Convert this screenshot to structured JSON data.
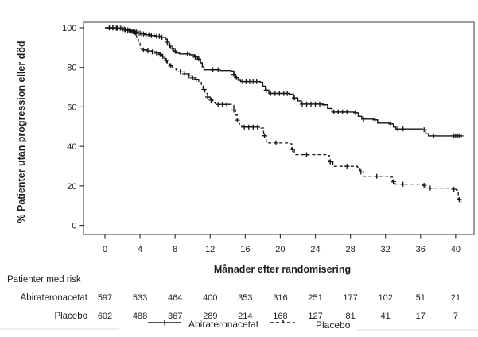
{
  "figure": {
    "background": "#ffffff",
    "frame_color": "#8a8a8a",
    "curve_color": "#151515",
    "tick_color": "#333333"
  },
  "chart_data": {
    "type": "line",
    "subtype": "kaplan-meier-step",
    "title": "",
    "xlabel": "Månader efter randomisering",
    "ylabel": "% Patienter utan progression eller död",
    "x_ticks": [
      0,
      4,
      8,
      12,
      16,
      20,
      24,
      28,
      32,
      36,
      40
    ],
    "y_ticks": [
      0,
      20,
      40,
      60,
      80,
      100
    ],
    "xlim": [
      -2.45,
      42.1
    ],
    "ylim": [
      -4.6,
      102.8
    ],
    "grid": false,
    "legend_position": "bottom",
    "series": [
      {
        "name": "Abirateronacetat",
        "style": "solid",
        "marker": "+",
        "points": [
          [
            0,
            100
          ],
          [
            1.0,
            99.8
          ],
          [
            1.9,
            99.4
          ],
          [
            2.2,
            99
          ],
          [
            2.6,
            98.6
          ],
          [
            3.0,
            98.2
          ],
          [
            3.4,
            97.8
          ],
          [
            3.8,
            97.3
          ],
          [
            4.2,
            96.9
          ],
          [
            4.7,
            96.5
          ],
          [
            5.2,
            96.1
          ],
          [
            5.8,
            95.7
          ],
          [
            6.4,
            95.2
          ],
          [
            6.9,
            94.3
          ],
          [
            7.1,
            92.8
          ],
          [
            7.3,
            91.2
          ],
          [
            7.5,
            89.6
          ],
          [
            7.8,
            88.2
          ],
          [
            8.1,
            87.2
          ],
          [
            8.5,
            86.8
          ],
          [
            9.7,
            86.3
          ],
          [
            10.2,
            85.2
          ],
          [
            10.6,
            84.2
          ],
          [
            10.9,
            82.3
          ],
          [
            11.1,
            80.3
          ],
          [
            11.3,
            78.8
          ],
          [
            13.1,
            78.4
          ],
          [
            14.4,
            78.1
          ],
          [
            14.7,
            76.4
          ],
          [
            14.9,
            74.8
          ],
          [
            15.2,
            73.4
          ],
          [
            15.5,
            72.8
          ],
          [
            17.7,
            72.4
          ],
          [
            18.0,
            70.4
          ],
          [
            18.3,
            68.4
          ],
          [
            18.7,
            66.8
          ],
          [
            21.0,
            66.4
          ],
          [
            21.5,
            64.5
          ],
          [
            22.0,
            63
          ],
          [
            22.4,
            61.4
          ],
          [
            24.9,
            61.1
          ],
          [
            25.4,
            59.2
          ],
          [
            25.9,
            57.4
          ],
          [
            28.5,
            57.0
          ],
          [
            28.9,
            55.2
          ],
          [
            29.3,
            53.8
          ],
          [
            30.7,
            53.4
          ],
          [
            31.1,
            51.8
          ],
          [
            32.5,
            51.4
          ],
          [
            32.9,
            49.8
          ],
          [
            33.2,
            48.8
          ],
          [
            36.2,
            48.4
          ],
          [
            36.6,
            46.4
          ],
          [
            36.9,
            45.3
          ],
          [
            40.7,
            44.9
          ]
        ],
        "censor_months": [
          0.5,
          0.9,
          1.3,
          1.6,
          2.0,
          2.3,
          2.6,
          2.8,
          3.0,
          3.2,
          3.4,
          3.6,
          3.8,
          4.0,
          4.2,
          4.4,
          4.7,
          5.0,
          5.3,
          5.6,
          5.9,
          6.2,
          6.5,
          7.1,
          7.4,
          7.7,
          8.0,
          9.4,
          10.3,
          10.7,
          12.3,
          12.9,
          14.7,
          15.0,
          15.7,
          16.1,
          16.5,
          16.9,
          17.3,
          18.4,
          18.9,
          19.4,
          19.9,
          20.4,
          20.8,
          21.6,
          22.5,
          23.0,
          23.5,
          24.0,
          24.5,
          25.0,
          26.1,
          26.6,
          27.1,
          27.6,
          28.6,
          29.5,
          30.8,
          32.6,
          33.4,
          34.0,
          36.4,
          37.5,
          39.8,
          40.0,
          40.2,
          40.4,
          40.6
        ]
      },
      {
        "name": "Placebo",
        "style": "dashed",
        "marker": "+",
        "points": [
          [
            0,
            100
          ],
          [
            1.0,
            99.8
          ],
          [
            2.0,
            99.3
          ],
          [
            2.3,
            98.9
          ],
          [
            2.7,
            98.5
          ],
          [
            3.1,
            98
          ],
          [
            3.4,
            97.4
          ],
          [
            3.6,
            95.2
          ],
          [
            3.8,
            92.3
          ],
          [
            4.0,
            89.6
          ],
          [
            4.3,
            88.8
          ],
          [
            4.8,
            88.3
          ],
          [
            5.3,
            87.8
          ],
          [
            5.8,
            87.2
          ],
          [
            6.2,
            86.5
          ],
          [
            6.5,
            85.6
          ],
          [
            6.7,
            84.6
          ],
          [
            6.9,
            83.5
          ],
          [
            7.1,
            82.2
          ],
          [
            7.4,
            80.8
          ],
          [
            7.7,
            79.7
          ],
          [
            8.1,
            78.7
          ],
          [
            8.6,
            77.7
          ],
          [
            9.1,
            76.7
          ],
          [
            9.6,
            75.7
          ],
          [
            10.0,
            74.7
          ],
          [
            10.4,
            73.7
          ],
          [
            10.7,
            72.4
          ],
          [
            11.0,
            70.8
          ],
          [
            11.2,
            68.8
          ],
          [
            11.4,
            66.8
          ],
          [
            11.7,
            65
          ],
          [
            12.0,
            63.4
          ],
          [
            12.3,
            62.3
          ],
          [
            12.6,
            61.3
          ],
          [
            14.4,
            60.8
          ],
          [
            14.7,
            58.4
          ],
          [
            14.9,
            55.8
          ],
          [
            15.1,
            53.3
          ],
          [
            15.3,
            51.3
          ],
          [
            15.6,
            49.8
          ],
          [
            17.8,
            49.3
          ],
          [
            18.1,
            45.4
          ],
          [
            18.4,
            41.7
          ],
          [
            21.0,
            41.3
          ],
          [
            21.3,
            38.4
          ],
          [
            21.6,
            35.8
          ],
          [
            25.2,
            35.4
          ],
          [
            25.6,
            32.2
          ],
          [
            26.0,
            29.9
          ],
          [
            28.8,
            29.4
          ],
          [
            29.1,
            27
          ],
          [
            29.5,
            24.9
          ],
          [
            32.4,
            24.4
          ],
          [
            32.8,
            22.1
          ],
          [
            33.1,
            20.9
          ],
          [
            36.3,
            20.3
          ],
          [
            36.6,
            18.9
          ],
          [
            39.8,
            18.3
          ],
          [
            40.1,
            17.8
          ],
          [
            40.3,
            13
          ],
          [
            40.6,
            11.2
          ]
        ],
        "censor_months": [
          0.5,
          0.9,
          1.4,
          1.8,
          2.2,
          2.6,
          2.9,
          3.2,
          3.5,
          4.4,
          4.9,
          5.4,
          5.9,
          6.3,
          6.6,
          7.0,
          7.5,
          8.6,
          9.1,
          9.6,
          10.0,
          10.4,
          11.3,
          11.7,
          12.1,
          12.9,
          13.4,
          13.9,
          14.7,
          15.1,
          15.9,
          16.4,
          16.9,
          17.4,
          18.2,
          19.5,
          21.4,
          23.0,
          25.7,
          27.6,
          29.2,
          31.0,
          32.9,
          34.0,
          36.4,
          37.1,
          39.8,
          40.4
        ]
      }
    ]
  },
  "risk_table": {
    "title": "Patienter med risk",
    "months": [
      0,
      4,
      8,
      12,
      16,
      20,
      24,
      28,
      32,
      36,
      40
    ],
    "rows": [
      {
        "label": "Abirateronacetat",
        "values": [
          597,
          533,
          464,
          400,
          353,
          316,
          251,
          177,
          102,
          51,
          21
        ]
      },
      {
        "label": "Placebo",
        "values": [
          602,
          488,
          367,
          289,
          214,
          168,
          127,
          81,
          41,
          17,
          7
        ]
      }
    ]
  },
  "legend": {
    "items": [
      {
        "label": "Abirateronacetat",
        "style": "solid"
      },
      {
        "label": "Placebo",
        "style": "dashed"
      }
    ]
  }
}
